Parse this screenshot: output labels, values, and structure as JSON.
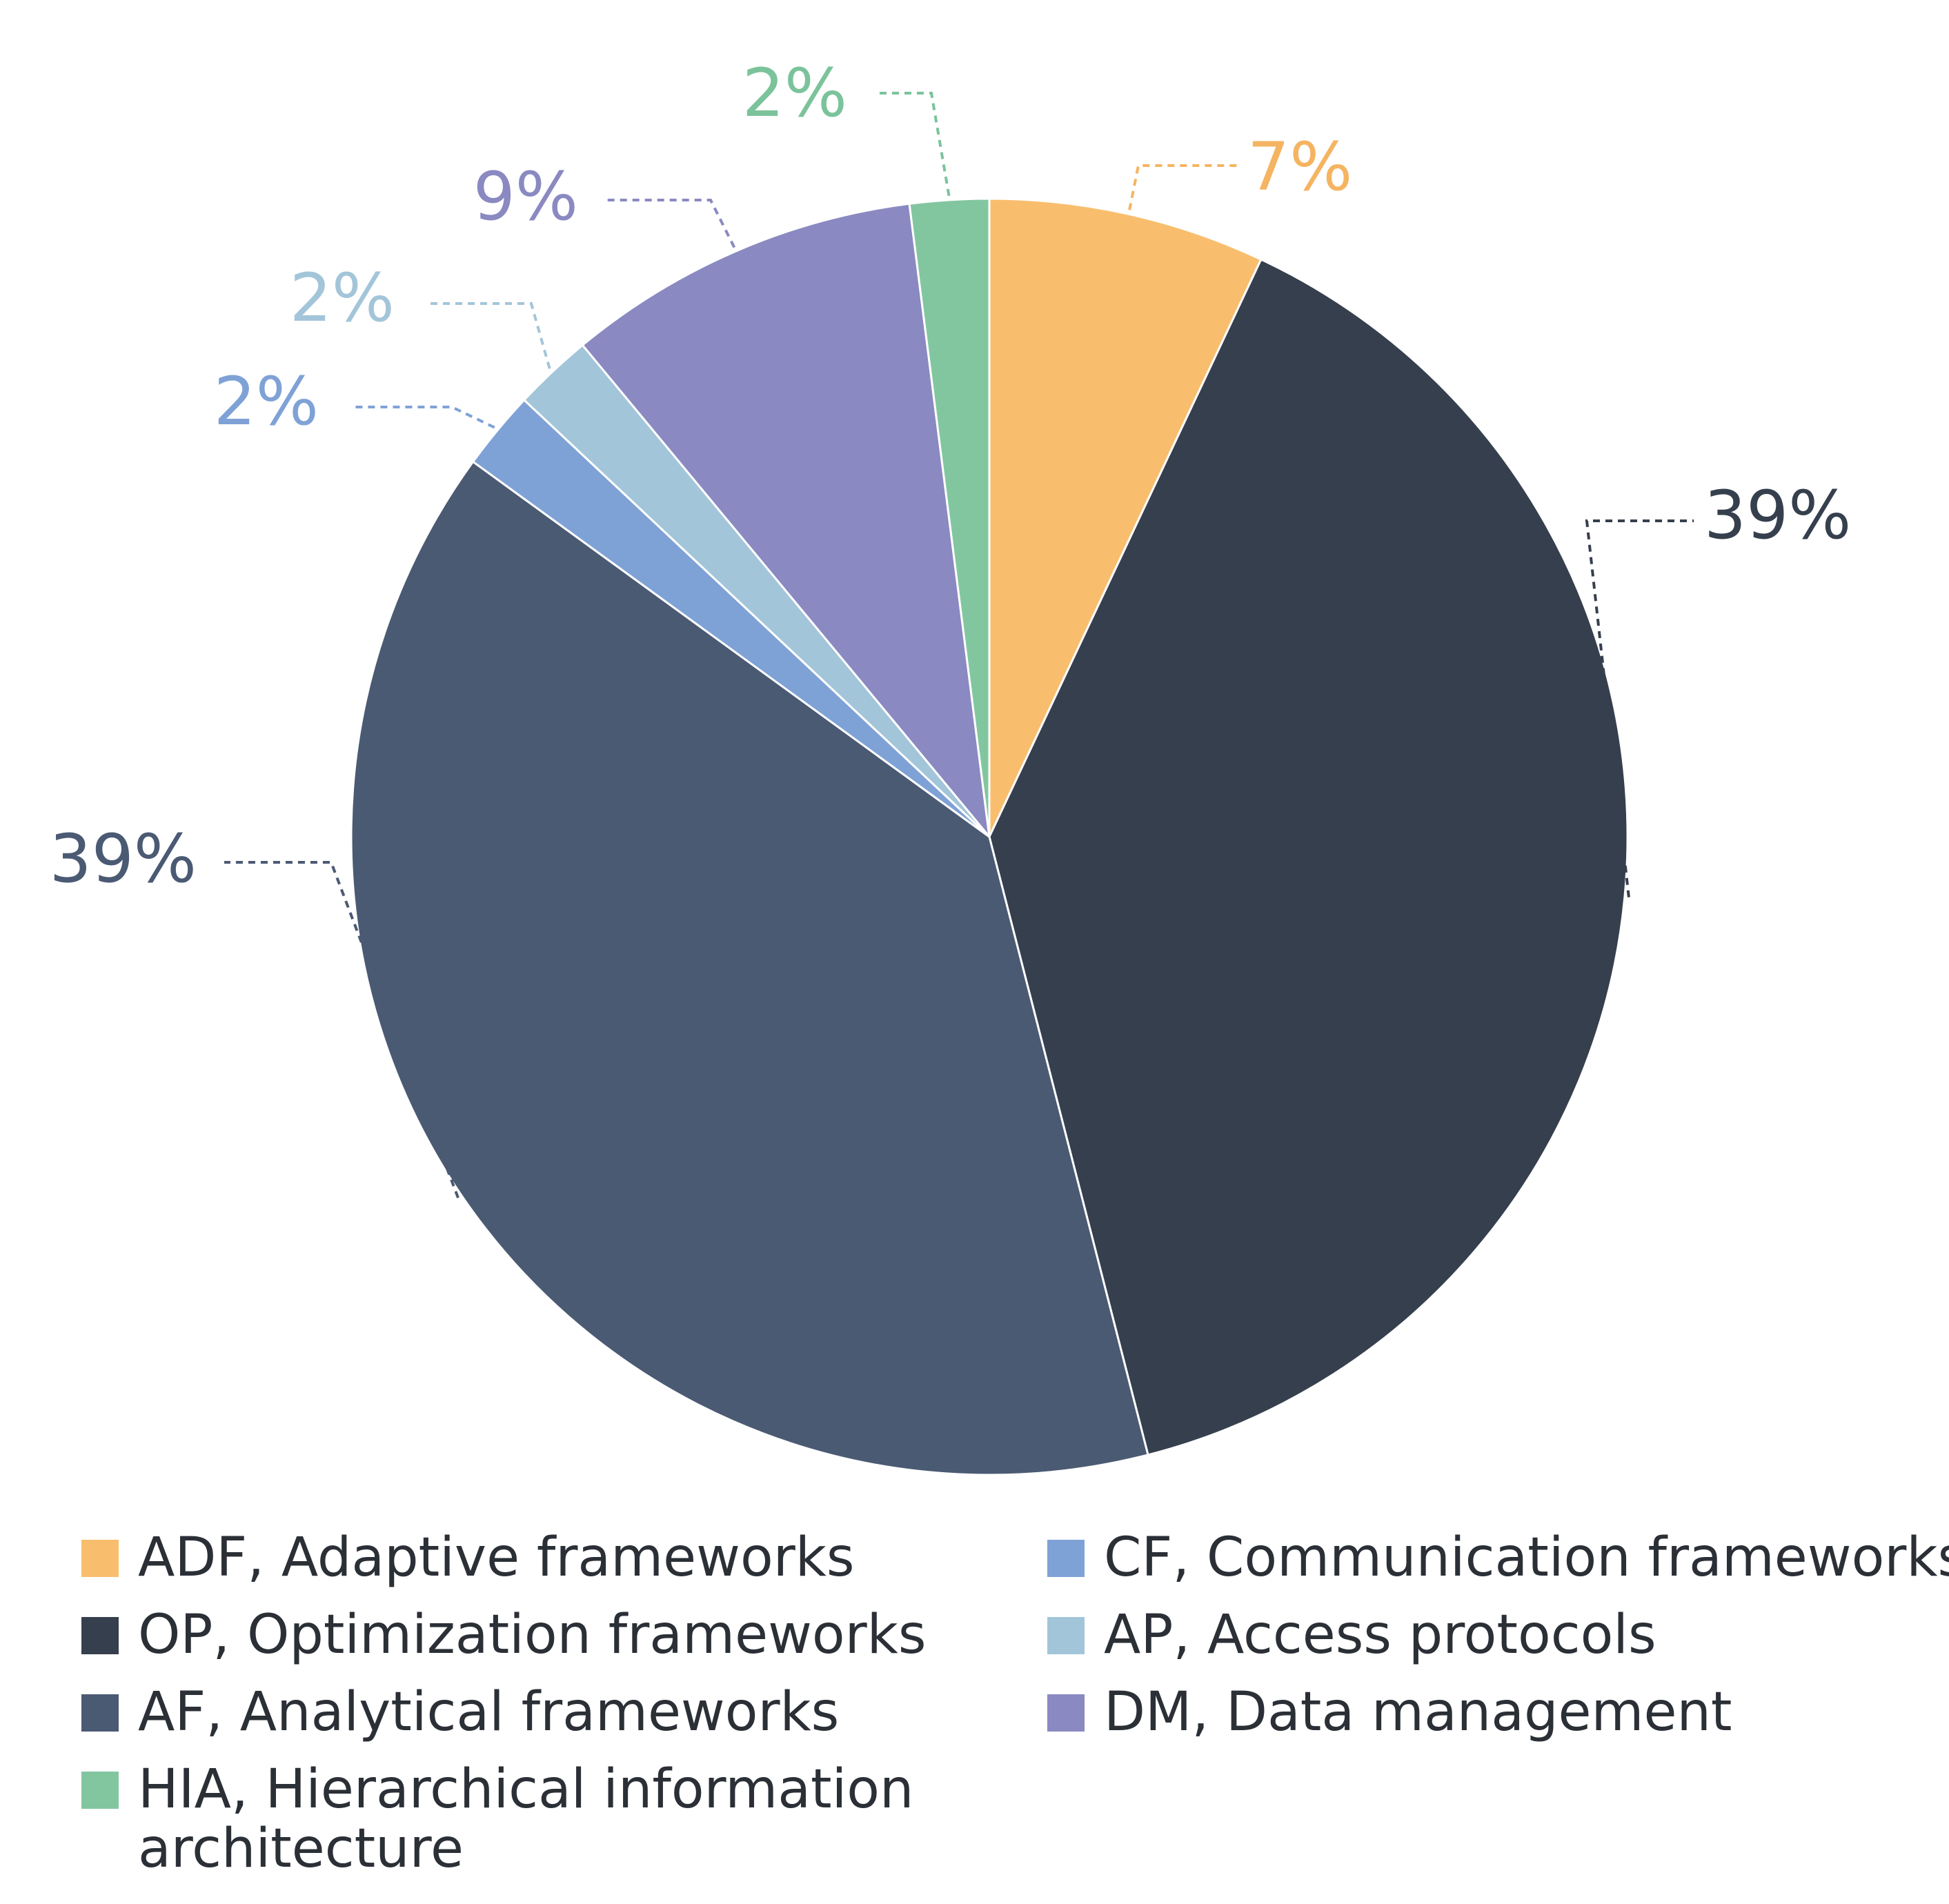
{
  "chart_data": {
    "type": "pie",
    "title": "",
    "unit": "%",
    "start": "top",
    "direction": "clockwise",
    "slices": [
      {
        "code": "ADF",
        "label": "ADF, Adaptive frameworks",
        "value": 7,
        "value_label": "7%",
        "color": "#F8BE6E",
        "label_color": "#F5B461"
      },
      {
        "code": "OP",
        "label": "OP, Optimization frameworks",
        "value": 39,
        "value_label": "39%",
        "color": "#363F4D",
        "label_color": "#363F4D"
      },
      {
        "code": "AF",
        "label": "AF, Analytical frameworks",
        "value": 39,
        "value_label": "39%",
        "color": "#4B5A73",
        "label_color": "#4B5A73"
      },
      {
        "code": "CF",
        "label": "CF, Communication frameworks",
        "value": 2,
        "value_label": "2%",
        "color": "#7FA2D6",
        "label_color": "#7FA2D6"
      },
      {
        "code": "AP",
        "label": "AP, Access protocols",
        "value": 2,
        "value_label": "2%",
        "color": "#A3C5D9",
        "label_color": "#A3C5D9"
      },
      {
        "code": "DM",
        "label": "DM, Data management",
        "value": 9,
        "value_label": "9%",
        "color": "#8A89C1",
        "label_color": "#8A89C1"
      },
      {
        "code": "HIA",
        "label": "HIA, Hierarchical information architecture",
        "label_lines": [
          "HIA, Hierarchical information",
          "architecture"
        ],
        "value": 2,
        "value_label": "2%",
        "color": "#82C6A0",
        "label_color": "#7BC39B"
      }
    ],
    "legend": {
      "position": "bottom",
      "columns": [
        [
          "ADF",
          "OP",
          "AF",
          "HIA"
        ],
        [
          "CF",
          "AP",
          "DM"
        ]
      ]
    }
  }
}
